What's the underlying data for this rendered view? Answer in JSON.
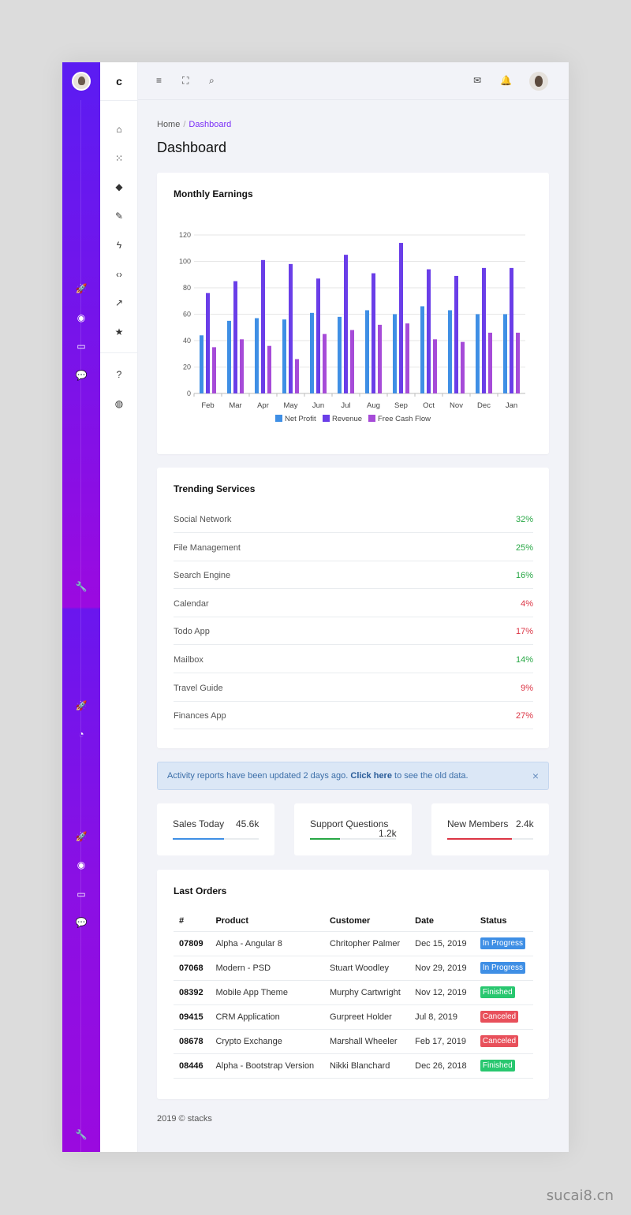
{
  "colors": {
    "accent": "#7b2ff7",
    "rail_top": "#5b1cf2",
    "rail_bottom": "#9a0adf",
    "net_profit": "#3f8fe5",
    "revenue": "#6a3ee8",
    "free_cash_flow": "#a64bd8",
    "success": "#28a745",
    "danger": "#dc3545",
    "in_progress": "#3f8fe5"
  },
  "sidebar": {
    "brand": "c",
    "rail_icons": [
      "rocket-icon",
      "globe-icon",
      "inbox-icon",
      "chat-icon",
      "wrench-icon",
      "rocket-icon",
      "chat-icon",
      "rocket-icon",
      "globe-icon",
      "inbox-icon",
      "chat-icon",
      "wrench-icon"
    ],
    "nav_icons": [
      "home-icon",
      "apps-icon",
      "layers-icon",
      "brush-icon",
      "lightning-icon",
      "code-icon",
      "trend-icon",
      "star-icon",
      "help-icon",
      "globe-icon"
    ]
  },
  "header": {
    "icons": [
      "menu-icon",
      "fullscreen-icon",
      "search-icon",
      "mail-icon",
      "bell-icon",
      "user-avatar"
    ]
  },
  "breadcrumb": {
    "home": "Home",
    "sep": "/",
    "current": "Dashboard"
  },
  "page_title": "Dashboard",
  "earnings": {
    "title": "Monthly Earnings",
    "chart_data": {
      "type": "bar",
      "categories": [
        "Feb",
        "Mar",
        "Apr",
        "May",
        "Jun",
        "Jul",
        "Aug",
        "Sep",
        "Oct",
        "Nov",
        "Dec",
        "Jan"
      ],
      "series": [
        {
          "name": "Net Profit",
          "values": [
            44,
            55,
            57,
            56,
            61,
            58,
            63,
            60,
            66,
            63,
            60,
            60
          ]
        },
        {
          "name": "Revenue",
          "values": [
            76,
            85,
            101,
            98,
            87,
            105,
            91,
            114,
            94,
            89,
            95,
            95
          ]
        },
        {
          "name": "Free Cash Flow",
          "values": [
            35,
            41,
            36,
            26,
            45,
            48,
            52,
            53,
            41,
            39,
            46,
            46
          ]
        }
      ],
      "ylim": [
        0,
        120
      ],
      "yticks": [
        0,
        20,
        40,
        60,
        80,
        100,
        120
      ],
      "grid": true,
      "legend": "bottom"
    }
  },
  "trending": {
    "title": "Trending Services",
    "items": [
      {
        "name": "Social Network",
        "pct": "32%",
        "trend": "up"
      },
      {
        "name": "File Management",
        "pct": "25%",
        "trend": "up"
      },
      {
        "name": "Search Engine",
        "pct": "16%",
        "trend": "up"
      },
      {
        "name": "Calendar",
        "pct": "4%",
        "trend": "down"
      },
      {
        "name": "Todo App",
        "pct": "17%",
        "trend": "down"
      },
      {
        "name": "Mailbox",
        "pct": "14%",
        "trend": "up"
      },
      {
        "name": "Travel Guide",
        "pct": "9%",
        "trend": "down"
      },
      {
        "name": "Finances App",
        "pct": "27%",
        "trend": "down"
      }
    ]
  },
  "alert": {
    "before": "Activity reports have been updated 2 days ago. ",
    "link": "Click here",
    "after": " to see the old data.",
    "close": "×"
  },
  "stats": [
    {
      "label": "Sales Today",
      "value": "45.6k",
      "progress": 0.6,
      "color": "#3f8fe5"
    },
    {
      "label": "Support Questions",
      "value": "1.2k",
      "progress": 0.35,
      "color": "#28a745"
    },
    {
      "label": "New Members",
      "value": "2.4k",
      "progress": 0.75,
      "color": "#dc3545"
    }
  ],
  "orders": {
    "title": "Last Orders",
    "columns": [
      "#",
      "Product",
      "Customer",
      "Date",
      "Status"
    ],
    "rows": [
      {
        "id": "07809",
        "product": "Alpha - Angular 8",
        "customer": "Chritopher Palmer",
        "date": "Dec 15, 2019",
        "status": "In Progress",
        "color": "#3f8fe5"
      },
      {
        "id": "07068",
        "product": "Modern - PSD",
        "customer": "Stuart Woodley",
        "date": "Nov 29, 2019",
        "status": "In Progress",
        "color": "#3f8fe5"
      },
      {
        "id": "08392",
        "product": "Mobile App Theme",
        "customer": "Murphy Cartwright",
        "date": "Nov 12, 2019",
        "status": "Finished",
        "color": "#28c76f"
      },
      {
        "id": "09415",
        "product": "CRM Application",
        "customer": "Gurpreet Holder",
        "date": "Jul 8, 2019",
        "status": "Canceled",
        "color": "#e8505b"
      },
      {
        "id": "08678",
        "product": "Crypto Exchange",
        "customer": "Marshall Wheeler",
        "date": "Feb 17, 2019",
        "status": "Canceled",
        "color": "#e8505b"
      },
      {
        "id": "08446",
        "product": "Alpha - Bootstrap Version",
        "customer": "Nikki Blanchard",
        "date": "Dec 26, 2018",
        "status": "Finished",
        "color": "#28c76f"
      }
    ]
  },
  "footer": "2019 © stacks",
  "watermark": "sucai8.cn"
}
